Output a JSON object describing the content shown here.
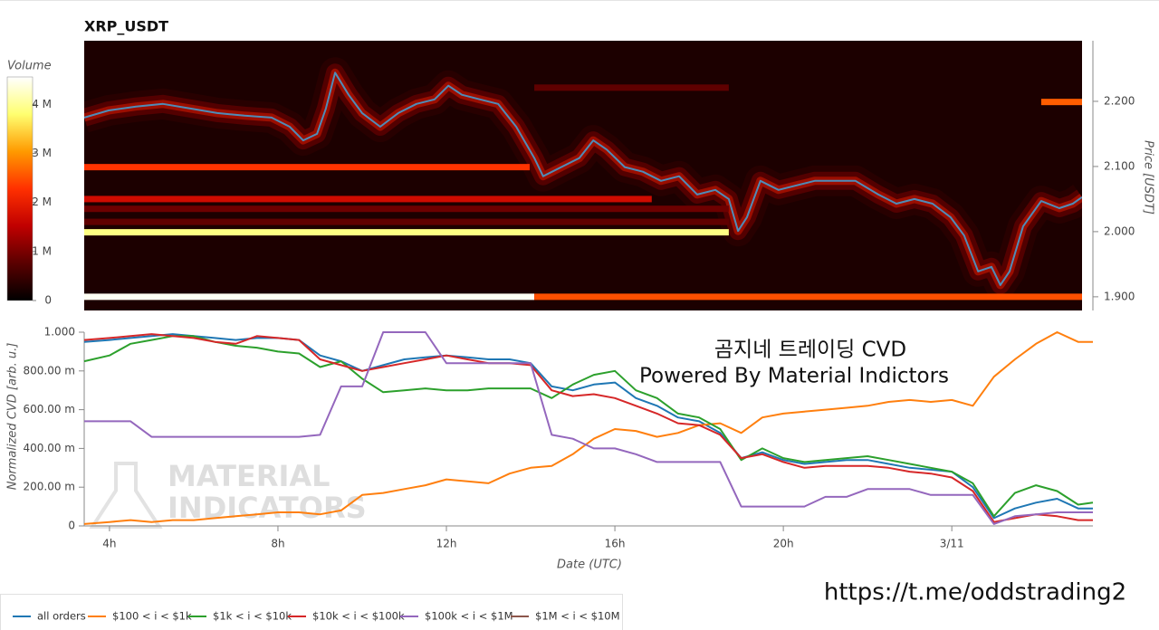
{
  "chart_data": [
    {
      "type": "heatmap",
      "title": "XRP_USDT",
      "y_label": "Price [USDT]",
      "colorbar_label": "Volume",
      "xlim": [
        3.4,
        27.1
      ],
      "ylim": [
        1.879,
        2.293
      ],
      "yticks": [
        {
          "value": 1.9,
          "label": "1.900"
        },
        {
          "value": 2.0,
          "label": "2.000"
        },
        {
          "value": 2.1,
          "label": "2.100"
        },
        {
          "value": 2.2,
          "label": "2.200"
        }
      ],
      "clim": [
        0,
        4560000
      ],
      "cticks": [
        0,
        {
          "value": 1000000,
          "label": "1 M"
        },
        {
          "value": 2000000,
          "label": "2 M"
        },
        {
          "value": 3000000,
          "label": "3 M"
        },
        {
          "value": 4000000,
          "label": "4 M"
        }
      ],
      "colormap": [
        "#000000",
        "#5a0000",
        "#c00000",
        "#ff3000",
        "#ff9a00",
        "#ffff70",
        "#ffffff"
      ],
      "background": "#1c0000",
      "levels": [
        {
          "price": 2.099,
          "x": [
            3.4,
            13.98
          ],
          "volume": 2300000
        },
        {
          "price": 2.05,
          "x": [
            3.4,
            16.88
          ],
          "volume": 1700000
        },
        {
          "price": 1.999,
          "x": [
            3.4,
            18.71
          ],
          "volume": 3900000
        },
        {
          "price": 1.9,
          "x": [
            3.4,
            14.09
          ],
          "volume": 4500000
        },
        {
          "price": 1.9,
          "x": [
            14.09,
            27.1
          ],
          "volume": 2500000
        },
        {
          "price": 2.199,
          "x": [
            26.13,
            27.1
          ],
          "volume": 2600000
        },
        {
          "price": 2.221,
          "x": [
            14.09,
            18.71
          ],
          "volume": 800000
        },
        {
          "price": 2.035,
          "x": [
            3.4,
            18.71
          ],
          "volume": 900000
        },
        {
          "price": 2.015,
          "x": [
            3.4,
            18.71
          ],
          "volume": 800000
        }
      ],
      "price_color": "#4f8cb8",
      "x": [
        3.4,
        3.98,
        4.63,
        5.27,
        5.92,
        6.56,
        7.21,
        7.85,
        8.28,
        8.6,
        8.93,
        9.14,
        9.36,
        9.68,
        10.0,
        10.43,
        10.86,
        11.29,
        11.72,
        12.05,
        12.37,
        12.8,
        13.23,
        13.66,
        14.09,
        14.3,
        14.73,
        15.16,
        15.49,
        15.81,
        16.24,
        16.67,
        17.1,
        17.53,
        17.96,
        18.39,
        18.71,
        18.93,
        19.14,
        19.46,
        19.89,
        20.32,
        20.75,
        21.18,
        21.72,
        22.26,
        22.69,
        23.12,
        23.55,
        23.98,
        24.3,
        24.63,
        24.95,
        25.16,
        25.38,
        25.7,
        26.13,
        26.56,
        26.88,
        27.1
      ],
      "values": [
        2.175,
        2.186,
        2.192,
        2.196,
        2.189,
        2.182,
        2.178,
        2.175,
        2.161,
        2.14,
        2.15,
        2.189,
        2.244,
        2.21,
        2.182,
        2.161,
        2.182,
        2.196,
        2.203,
        2.224,
        2.21,
        2.203,
        2.196,
        2.161,
        2.113,
        2.085,
        2.099,
        2.113,
        2.14,
        2.126,
        2.099,
        2.092,
        2.078,
        2.085,
        2.057,
        2.064,
        2.05,
        2.001,
        2.022,
        2.078,
        2.064,
        2.071,
        2.078,
        2.078,
        2.078,
        2.057,
        2.043,
        2.05,
        2.043,
        2.022,
        1.994,
        1.939,
        1.946,
        1.918,
        1.939,
        2.008,
        2.047,
        2.036,
        2.043,
        2.053
      ]
    },
    {
      "type": "line",
      "y_label": "Normalized CVD [arb. u.]",
      "x_label": "Date (UTC)",
      "xlim": [
        3.4,
        27.35
      ],
      "ylim": [
        0,
        1.0
      ],
      "xticks": [
        {
          "value": 4,
          "label": "4h"
        },
        {
          "value": 8,
          "label": "8h"
        },
        {
          "value": 12,
          "label": "12h"
        },
        {
          "value": 16,
          "label": "16h"
        },
        {
          "value": 20,
          "label": "20h"
        },
        {
          "value": 24,
          "label": "3/11"
        }
      ],
      "yticks": [
        0,
        {
          "value": 0.2,
          "label": "200.00 m"
        },
        {
          "value": 0.4,
          "label": "400.00 m"
        },
        {
          "value": 0.6,
          "label": "600.00 m"
        },
        {
          "value": 0.8,
          "label": "800.00 m"
        },
        {
          "value": 1.0,
          "label": "1.000"
        }
      ],
      "annotations": [
        "곰지네 트레이딩 CVD",
        "Powered By Material Indictors"
      ],
      "watermark": [
        "MATERIAL",
        "INDICATORS"
      ],
      "legend": "bottom-left",
      "x": [
        3.4,
        4,
        4.5,
        5,
        5.5,
        6,
        6.5,
        7,
        7.5,
        8,
        8.5,
        9,
        9.5,
        10,
        10.5,
        11,
        11.5,
        12,
        12.5,
        13,
        13.5,
        14,
        14.5,
        15,
        15.5,
        16,
        16.5,
        17,
        17.5,
        18,
        18.5,
        19,
        19.5,
        20,
        20.5,
        21,
        21.5,
        22,
        22.5,
        23,
        23.5,
        24,
        24.5,
        25,
        25.5,
        26,
        26.5,
        27,
        27.35
      ],
      "series": [
        {
          "name": "all orders",
          "color": "#1f77b4",
          "values": [
            0.95,
            0.96,
            0.97,
            0.98,
            0.99,
            0.98,
            0.97,
            0.96,
            0.97,
            0.97,
            0.96,
            0.88,
            0.85,
            0.8,
            0.83,
            0.86,
            0.87,
            0.88,
            0.87,
            0.86,
            0.86,
            0.84,
            0.72,
            0.7,
            0.73,
            0.74,
            0.66,
            0.62,
            0.56,
            0.54,
            0.48,
            0.35,
            0.38,
            0.34,
            0.32,
            0.33,
            0.34,
            0.34,
            0.32,
            0.3,
            0.29,
            0.28,
            0.2,
            0.04,
            0.09,
            0.12,
            0.14,
            0.09,
            0.09
          ]
        },
        {
          "name": "$100 < i < $1k",
          "color": "#ff7f0e",
          "values": [
            0.01,
            0.02,
            0.03,
            0.02,
            0.03,
            0.03,
            0.04,
            0.05,
            0.06,
            0.07,
            0.07,
            0.06,
            0.08,
            0.16,
            0.17,
            0.19,
            0.21,
            0.24,
            0.23,
            0.22,
            0.27,
            0.3,
            0.31,
            0.37,
            0.45,
            0.5,
            0.49,
            0.46,
            0.48,
            0.52,
            0.53,
            0.48,
            0.56,
            0.58,
            0.59,
            0.6,
            0.61,
            0.62,
            0.64,
            0.65,
            0.64,
            0.65,
            0.62,
            0.77,
            0.86,
            0.94,
            1.0,
            0.95,
            0.95
          ]
        },
        {
          "name": "$1k < i < $10k",
          "color": "#2ca02c",
          "values": [
            0.85,
            0.88,
            0.94,
            0.96,
            0.98,
            0.98,
            0.95,
            0.93,
            0.92,
            0.9,
            0.89,
            0.82,
            0.85,
            0.76,
            0.69,
            0.7,
            0.71,
            0.7,
            0.7,
            0.71,
            0.71,
            0.71,
            0.66,
            0.73,
            0.78,
            0.8,
            0.7,
            0.66,
            0.58,
            0.56,
            0.5,
            0.34,
            0.4,
            0.35,
            0.33,
            0.34,
            0.35,
            0.36,
            0.34,
            0.32,
            0.3,
            0.28,
            0.22,
            0.05,
            0.17,
            0.21,
            0.18,
            0.11,
            0.12
          ]
        },
        {
          "name": "$10k < i < $100k",
          "color": "#d62728",
          "values": [
            0.96,
            0.97,
            0.98,
            0.99,
            0.98,
            0.97,
            0.95,
            0.94,
            0.98,
            0.97,
            0.96,
            0.86,
            0.83,
            0.8,
            0.82,
            0.84,
            0.86,
            0.88,
            0.86,
            0.84,
            0.84,
            0.83,
            0.7,
            0.67,
            0.68,
            0.66,
            0.62,
            0.58,
            0.53,
            0.52,
            0.47,
            0.35,
            0.37,
            0.33,
            0.3,
            0.31,
            0.31,
            0.31,
            0.3,
            0.28,
            0.27,
            0.25,
            0.18,
            0.02,
            0.04,
            0.06,
            0.05,
            0.03,
            0.03
          ]
        },
        {
          "name": "$100k < i < $1M",
          "color": "#9467bd",
          "values": [
            0.54,
            0.54,
            0.54,
            0.46,
            0.46,
            0.46,
            0.46,
            0.46,
            0.46,
            0.46,
            0.46,
            0.47,
            0.72,
            0.72,
            1.0,
            1.0,
            1.0,
            0.84,
            0.84,
            0.84,
            0.84,
            0.84,
            0.47,
            0.45,
            0.4,
            0.4,
            0.37,
            0.33,
            0.33,
            0.33,
            0.33,
            0.1,
            0.1,
            0.1,
            0.1,
            0.15,
            0.15,
            0.19,
            0.19,
            0.19,
            0.16,
            0.16,
            0.16,
            0.01,
            0.05,
            0.06,
            0.07,
            0.07,
            0.07
          ]
        },
        {
          "name": "$1M < i < $10M",
          "color": "#8c564b",
          "values": [
            null,
            null,
            null,
            null,
            null,
            null,
            null,
            null,
            null,
            null,
            null,
            null,
            null,
            null,
            null,
            null,
            null,
            null,
            null,
            null,
            null,
            null,
            null,
            null,
            null,
            null,
            null,
            null,
            null,
            null,
            null,
            null,
            null,
            null,
            null,
            null,
            null,
            null,
            null,
            null,
            null,
            null,
            null,
            null,
            null,
            null,
            null,
            null,
            null
          ]
        }
      ]
    }
  ],
  "footer_link": "https://t.me/oddstrading2"
}
